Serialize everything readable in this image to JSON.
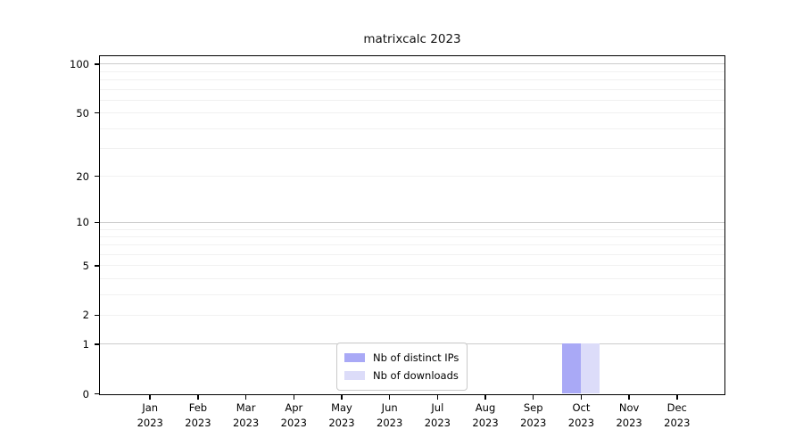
{
  "chart_data": {
    "type": "bar",
    "title": "matrixcalc 2023",
    "scale": "log1p",
    "xlabel": "",
    "ylabel": "",
    "x_ticks": {
      "months": [
        "Jan",
        "Feb",
        "Mar",
        "Apr",
        "May",
        "Jun",
        "Jul",
        "Aug",
        "Sep",
        "Oct",
        "Nov",
        "Dec"
      ],
      "year": "2023"
    },
    "y_ticks": [
      0,
      1,
      2,
      5,
      10,
      20,
      50,
      100
    ],
    "ylim": [
      0,
      111
    ],
    "series": [
      {
        "name": "Nb of distinct IPs",
        "color": "#a9a9f6",
        "values": [
          0,
          0,
          0,
          0,
          0,
          0,
          0,
          0,
          0,
          1,
          0,
          0
        ]
      },
      {
        "name": "Nb of downloads",
        "color": "#dcdcf9",
        "values": [
          0,
          0,
          0,
          0,
          0,
          0,
          0,
          0,
          0,
          1,
          0,
          0
        ]
      }
    ],
    "grid": {
      "major_values": [
        1,
        10,
        100
      ],
      "minor_values": [
        2,
        3,
        4,
        5,
        6,
        7,
        8,
        9,
        20,
        30,
        40,
        50,
        60,
        70,
        80,
        90
      ],
      "major_color": "#cccccc",
      "minor_color": "#f1f1f1"
    },
    "legend": {
      "position": "lower center"
    }
  }
}
